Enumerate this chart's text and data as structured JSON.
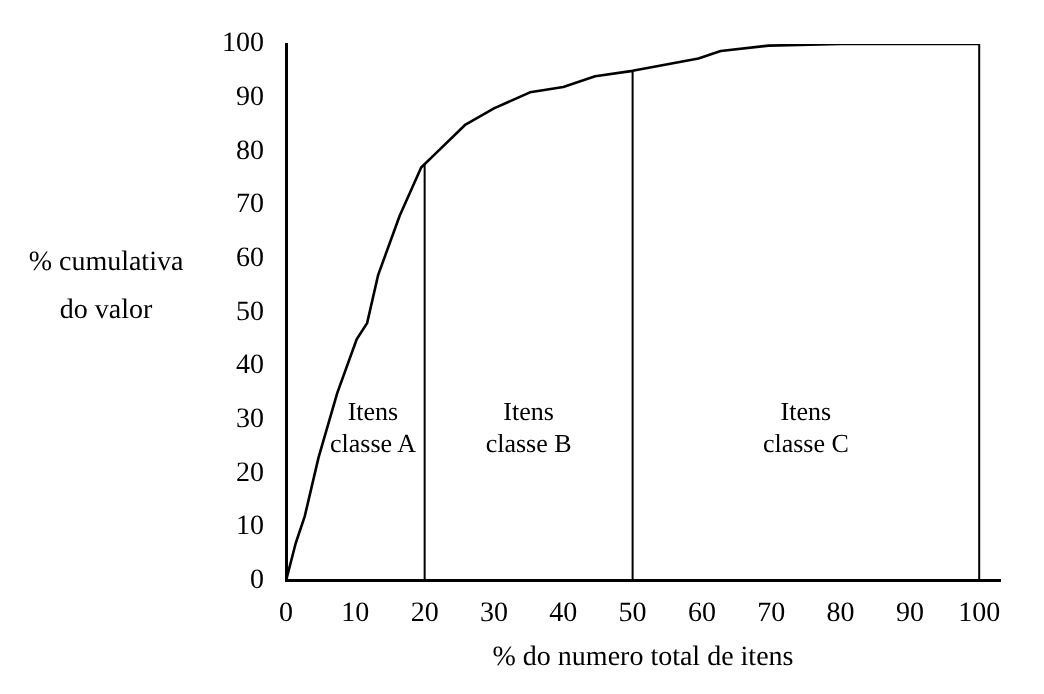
{
  "chart_data": {
    "type": "line",
    "xlabel": "% do numero total de itens",
    "ylabel": "% cumulativa do valor",
    "x": [
      0,
      1.4,
      2.7,
      4.7,
      7.4,
      10.2,
      11.7,
      13.3,
      16.4,
      19.5,
      21.9,
      25.9,
      30,
      35.2,
      40,
      44.6,
      50,
      59.5,
      62.7,
      69.6,
      80,
      100
    ],
    "values": [
      0,
      7,
      12,
      23,
      35,
      45,
      48,
      57,
      68,
      77,
      80,
      85,
      88,
      91,
      92,
      94,
      95,
      97.3,
      98.7,
      99.7,
      100,
      100
    ],
    "color": "#000000",
    "xlim": [
      0,
      103
    ],
    "ylim": [
      0,
      100
    ],
    "xticks": [
      0,
      10,
      20,
      30,
      40,
      50,
      60,
      70,
      80,
      90,
      100
    ],
    "yticks": [
      0,
      10,
      20,
      30,
      40,
      50,
      60,
      70,
      80,
      90,
      100
    ],
    "grid": false,
    "legend": false,
    "ref_lines": [
      {
        "axis": "x",
        "value": 20
      },
      {
        "axis": "x",
        "value": 50
      },
      {
        "axis": "x",
        "value": 100
      }
    ],
    "annotations": [
      "Itens\nclasse A",
      "Itens\nclasse B",
      "Itens\nclasse C"
    ]
  }
}
